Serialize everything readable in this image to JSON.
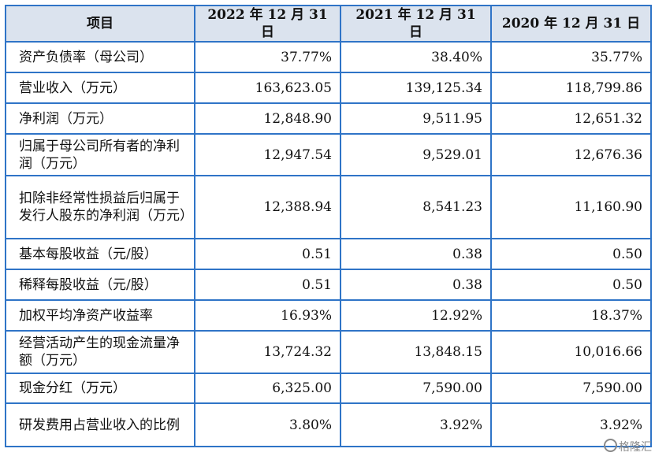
{
  "table": {
    "headers": [
      "项目",
      "2022 年 12 月 31 日",
      "2021 年 12 月 31 日",
      "2020 年 12 月 31 日"
    ],
    "rows": [
      {
        "label": "资产负债率（母公司）",
        "values": [
          "37.77%",
          "38.40%",
          "35.77%"
        ]
      },
      {
        "label": "营业收入（万元）",
        "values": [
          "163,623.05",
          "139,125.34",
          "118,799.86"
        ]
      },
      {
        "label": "净利润（万元）",
        "values": [
          "12,848.90",
          "9,511.95",
          "12,651.32"
        ]
      },
      {
        "label": "归属于母公司所有者的净利润（万元）",
        "values": [
          "12,947.54",
          "9,529.01",
          "12,676.36"
        ]
      },
      {
        "label": "扣除非经常性损益后归属于发行人股东的净利润（万元）",
        "values": [
          "12,388.94",
          "8,541.23",
          "11,160.90"
        ]
      },
      {
        "label": "基本每股收益（元/股）",
        "values": [
          "0.51",
          "0.38",
          "0.50"
        ]
      },
      {
        "label": "稀释每股收益（元/股）",
        "values": [
          "0.51",
          "0.38",
          "0.50"
        ]
      },
      {
        "label": "加权平均净资产收益率",
        "values": [
          "16.93%",
          "12.92%",
          "18.37%"
        ]
      },
      {
        "label": "经营活动产生的现金流量净额（万元）",
        "values": [
          "13,724.32",
          "13,848.15",
          "10,016.66"
        ]
      },
      {
        "label": "现金分红（万元）",
        "values": [
          "6,325.00",
          "7,590.00",
          "7,590.00"
        ]
      },
      {
        "label": "研发费用占营业收入的比例",
        "values": [
          "3.80%",
          "3.92%",
          "3.92%"
        ]
      }
    ]
  },
  "watermark": {
    "text": "格隆汇",
    "icon": "gelonghui-logo-icon"
  }
}
